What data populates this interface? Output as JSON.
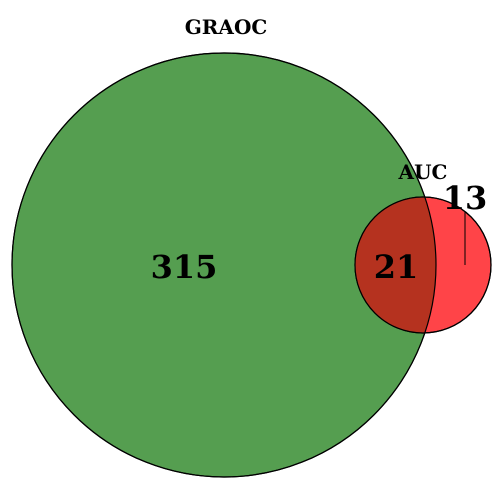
{
  "diagram": {
    "type": "venn",
    "sets": [
      {
        "name": "GRAOC",
        "only_count": "315",
        "color": "#559e50"
      },
      {
        "name": "AUC",
        "only_count": "13",
        "color": "#ff4448"
      }
    ],
    "intersection": {
      "count": "21",
      "color": "#b5321f"
    },
    "outline_color": "#000000"
  }
}
